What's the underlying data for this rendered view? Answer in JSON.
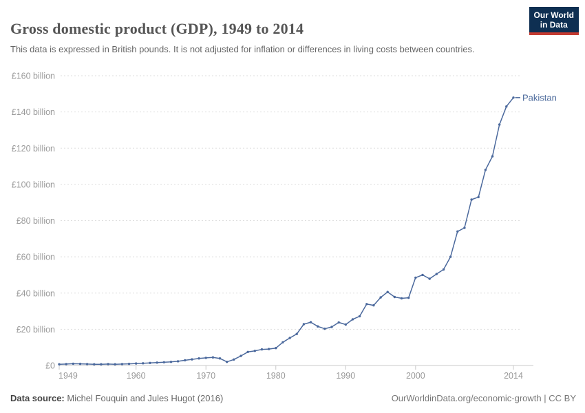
{
  "header": {
    "title": "Gross domestic product (GDP), 1949 to 2014",
    "subtitle": "This data is expressed in British pounds. It is not adjusted for inflation or differences in living costs between countries.",
    "logo": {
      "line1": "Our World",
      "line2": "in Data"
    }
  },
  "chart_data": {
    "type": "line",
    "title": "Gross domestic product (GDP), 1949 to 2014",
    "entity": "Pakistan",
    "unit": "British pounds, billions",
    "grid": "horizontal dashed",
    "legend_position": "end-of-line label",
    "xlim": [
      1949,
      2014
    ],
    "ylim": [
      0,
      160
    ],
    "x_ticks": [
      1949,
      1960,
      1970,
      1980,
      1990,
      2000,
      2014
    ],
    "y_ticks": [
      0,
      20,
      40,
      60,
      80,
      100,
      120,
      140,
      160
    ],
    "y_tick_labels": [
      "£0",
      "£20 billion",
      "£40 billion",
      "£60 billion",
      "£80 billion",
      "£100 billion",
      "£120 billion",
      "£140 billion",
      "£160 billion"
    ],
    "x": [
      1949,
      1950,
      1951,
      1952,
      1953,
      1954,
      1955,
      1956,
      1957,
      1958,
      1959,
      1960,
      1961,
      1962,
      1963,
      1964,
      1965,
      1966,
      1967,
      1968,
      1969,
      1970,
      1971,
      1972,
      1973,
      1974,
      1975,
      1976,
      1977,
      1978,
      1979,
      1980,
      1981,
      1982,
      1983,
      1984,
      1985,
      1986,
      1987,
      1988,
      1989,
      1990,
      1991,
      1992,
      1993,
      1994,
      1995,
      1996,
      1997,
      1998,
      1999,
      2000,
      2001,
      2002,
      2003,
      2004,
      2005,
      2006,
      2007,
      2008,
      2009,
      2010,
      2011,
      2012,
      2013,
      2014
    ],
    "series": [
      {
        "name": "Pakistan",
        "values": [
          0.7,
          0.8,
          1.0,
          0.9,
          0.8,
          0.7,
          0.7,
          0.8,
          0.7,
          0.8,
          0.9,
          1.1,
          1.2,
          1.4,
          1.6,
          1.8,
          2.0,
          2.3,
          2.9,
          3.4,
          3.9,
          4.2,
          4.5,
          3.9,
          2.0,
          3.3,
          5.3,
          7.5,
          8.1,
          8.9,
          9.1,
          9.6,
          12.8,
          15.2,
          17.4,
          22.8,
          23.9,
          21.6,
          20.3,
          21.3,
          23.8,
          22.6,
          25.5,
          27.2,
          33.9,
          33.2,
          37.6,
          40.6,
          37.8,
          37.1,
          37.4,
          48.5,
          50.0,
          47.9,
          50.5,
          53.0,
          60.0,
          74.0,
          76.0,
          91.6,
          93.0,
          108.0,
          115.5,
          133.0,
          143.0,
          147.9
        ]
      }
    ]
  },
  "colors": {
    "line": "#4a689c",
    "entity_label": "#4C6A9C",
    "gridline": "#dedede",
    "axis_line": "#c8c8c8",
    "axis_text": "#999999",
    "logo_bg": "#0e2f52",
    "logo_red": "#c43b31",
    "title": "#555555",
    "subtitle": "#666666"
  },
  "footer": {
    "source_label": "Data source:",
    "source_value": " Michel Fouquin and Jules Hugot (2016)",
    "link": "OurWorldinData.org/economic-growth",
    "separator": " | ",
    "license": "CC BY"
  }
}
